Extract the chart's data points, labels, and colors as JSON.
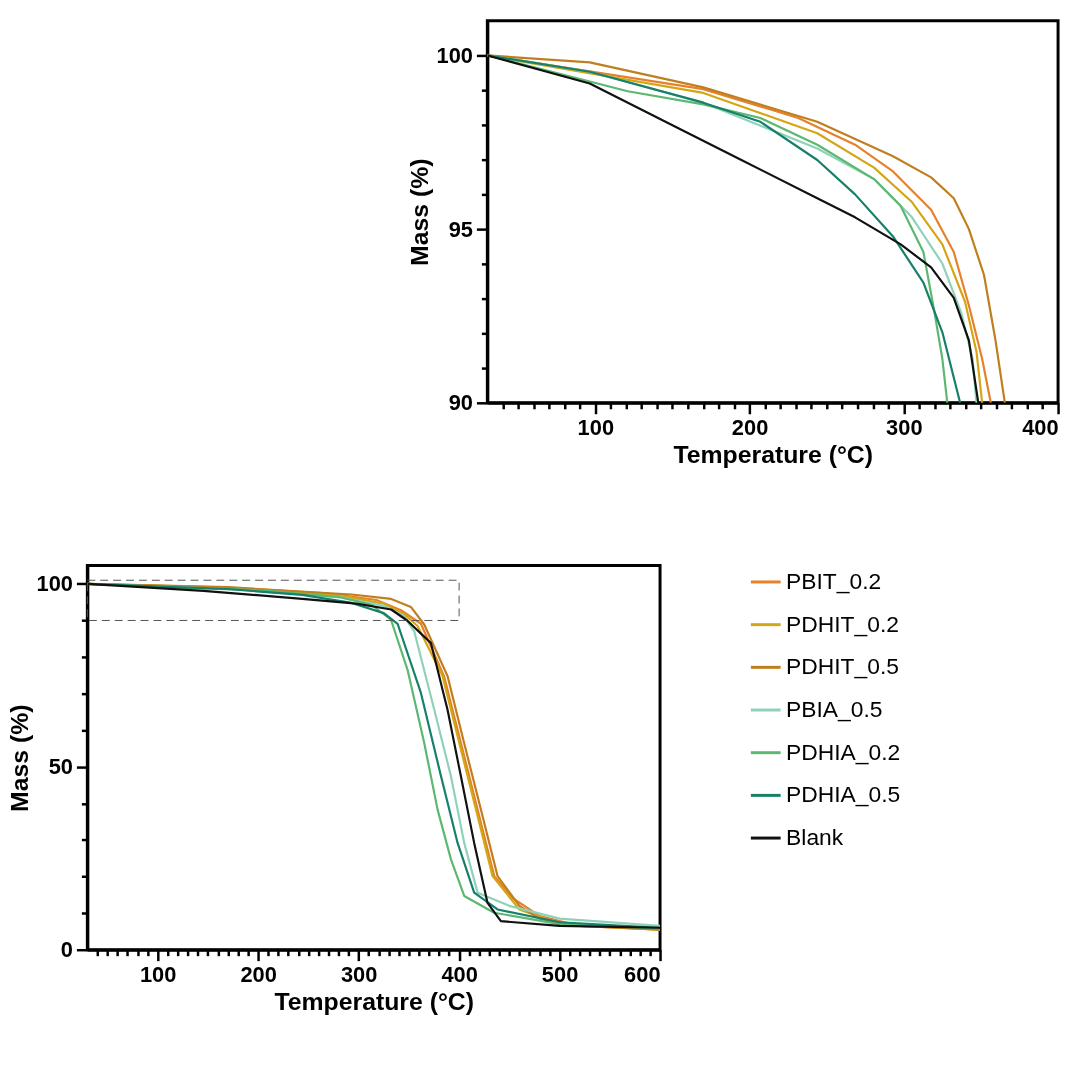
{
  "chart_data": [
    {
      "type": "line",
      "xlabel": "Temperature (°C)",
      "ylabel": "Mass (%)",
      "xlim": [
        30,
        400
      ],
      "ylim": [
        90,
        101
      ],
      "grid": false,
      "legend": false,
      "xticks": [
        {
          "value": 40,
          "label": null
        },
        {
          "value": 50,
          "label": null
        },
        {
          "value": 60,
          "label": null
        },
        {
          "value": 70,
          "label": null
        },
        {
          "value": 80,
          "label": null
        },
        {
          "value": 90,
          "label": null
        },
        100,
        {
          "value": 110,
          "label": null
        },
        {
          "value": 120,
          "label": null
        },
        {
          "value": 130,
          "label": null
        },
        {
          "value": 140,
          "label": null
        },
        {
          "value": 150,
          "label": null
        },
        {
          "value": 160,
          "label": null
        },
        {
          "value": 170,
          "label": null
        },
        {
          "value": 180,
          "label": null
        },
        {
          "value": 190,
          "label": null
        },
        200,
        {
          "value": 210,
          "label": null
        },
        {
          "value": 220,
          "label": null
        },
        {
          "value": 230,
          "label": null
        },
        {
          "value": 240,
          "label": null
        },
        {
          "value": 250,
          "label": null
        },
        {
          "value": 260,
          "label": null
        },
        {
          "value": 270,
          "label": null
        },
        {
          "value": 280,
          "label": null
        },
        {
          "value": 290,
          "label": null
        },
        300,
        {
          "value": 310,
          "label": null
        },
        {
          "value": 320,
          "label": null
        },
        {
          "value": 330,
          "label": null
        },
        {
          "value": 340,
          "label": null
        },
        {
          "value": 350,
          "label": null
        },
        {
          "value": 360,
          "label": null
        },
        {
          "value": 370,
          "label": null
        },
        {
          "value": 380,
          "label": null
        },
        {
          "value": 390,
          "label": null
        },
        400
      ],
      "yticks": [
        90,
        {
          "value": 91,
          "label": null
        },
        {
          "value": 92,
          "label": null
        },
        {
          "value": 93,
          "label": null
        },
        {
          "value": 94,
          "label": null
        },
        95,
        {
          "value": 96,
          "label": null
        },
        {
          "value": 97,
          "label": null
        },
        {
          "value": 98,
          "label": null
        },
        {
          "value": 99,
          "label": null
        },
        100
      ],
      "series": [
        {
          "color": "#e8802a",
          "x": [
            30,
            170,
            231.6,
            268.4,
            293,
            317.7,
            332.4,
            342.2,
            350.8,
            356.4
          ],
          "values": [
            100,
            99.03,
            98.2,
            97.43,
            96.66,
            95.56,
            94.34,
            92.8,
            91.26,
            90
          ]
        },
        {
          "color": "#d4a616",
          "x": [
            30,
            170,
            243.9,
            280.7,
            305.3,
            325,
            339.7,
            347.1,
            350.8
          ],
          "values": [
            100,
            98.92,
            97.76,
            96.77,
            95.78,
            94.56,
            92.91,
            91.48,
            90
          ]
        },
        {
          "color": "#c07f1f",
          "x": [
            30,
            96.4,
            170,
            243.9,
            293,
            317.7,
            332.4,
            342.2,
            352,
            359.4,
            365.5
          ],
          "values": [
            100,
            99.8,
            99.08,
            98.09,
            97.1,
            96.49,
            95.89,
            95.0,
            93.68,
            91.81,
            90
          ]
        },
        {
          "color": "#8fd1b9",
          "x": [
            30,
            96.4,
            170,
            243.9,
            280.7,
            305.3,
            325,
            337.3,
            344.6,
            347.1
          ],
          "values": [
            100,
            99.53,
            98.64,
            97.32,
            96.44,
            95.34,
            94.01,
            92.58,
            91.26,
            90
          ]
        },
        {
          "color": "#5cb870",
          "x": [
            30,
            71.8,
            121,
            170,
            207,
            243.9,
            280.7,
            297.9,
            312.7,
            320,
            325,
            328.2
          ],
          "values": [
            100,
            99.53,
            98.97,
            98.59,
            98.2,
            97.43,
            96.44,
            95.67,
            94.34,
            92.58,
            91.26,
            90
          ]
        },
        {
          "color": "#16806a",
          "x": [
            30,
            96.4,
            170,
            207,
            243.9,
            268.4,
            293,
            312.7,
            325,
            336.5
          ],
          "values": [
            100,
            99.53,
            98.64,
            98.09,
            96.99,
            96.0,
            94.79,
            93.46,
            92.03,
            90
          ]
        },
        {
          "color": "#111111",
          "x": [
            30,
            96.4,
            145.5,
            194.7,
            243.9,
            268.4,
            298,
            317.7,
            332.4,
            342.2,
            348.3
          ],
          "values": [
            100,
            99.19,
            98.09,
            96.99,
            95.89,
            95.34,
            94.56,
            93.9,
            93.02,
            91.8,
            90
          ]
        }
      ]
    },
    {
      "type": "line",
      "xlabel": "Temperature (°C)",
      "ylabel": "Mass (%)",
      "xlim": [
        30,
        600
      ],
      "ylim": [
        0,
        105
      ],
      "grid": false,
      "legend": "right",
      "xticks": [
        {
          "value": 40,
          "label": null
        },
        {
          "value": 50,
          "label": null
        },
        {
          "value": 60,
          "label": null
        },
        {
          "value": 70,
          "label": null
        },
        {
          "value": 80,
          "label": null
        },
        {
          "value": 90,
          "label": null
        },
        100,
        {
          "value": 110,
          "label": null
        },
        {
          "value": 120,
          "label": null
        },
        {
          "value": 130,
          "label": null
        },
        {
          "value": 140,
          "label": null
        },
        {
          "value": 150,
          "label": null
        },
        {
          "value": 160,
          "label": null
        },
        {
          "value": 170,
          "label": null
        },
        {
          "value": 180,
          "label": null
        },
        {
          "value": 190,
          "label": null
        },
        200,
        {
          "value": 210,
          "label": null
        },
        {
          "value": 220,
          "label": null
        },
        {
          "value": 230,
          "label": null
        },
        {
          "value": 240,
          "label": null
        },
        {
          "value": 250,
          "label": null
        },
        {
          "value": 260,
          "label": null
        },
        {
          "value": 270,
          "label": null
        },
        {
          "value": 280,
          "label": null
        },
        {
          "value": 290,
          "label": null
        },
        300,
        {
          "value": 310,
          "label": null
        },
        {
          "value": 320,
          "label": null
        },
        {
          "value": 330,
          "label": null
        },
        {
          "value": 340,
          "label": null
        },
        {
          "value": 350,
          "label": null
        },
        {
          "value": 360,
          "label": null
        },
        {
          "value": 370,
          "label": null
        },
        {
          "value": 380,
          "label": null
        },
        {
          "value": 390,
          "label": null
        },
        400,
        {
          "value": 410,
          "label": null
        },
        {
          "value": 420,
          "label": null
        },
        {
          "value": 430,
          "label": null
        },
        {
          "value": 440,
          "label": null
        },
        {
          "value": 450,
          "label": null
        },
        {
          "value": 460,
          "label": null
        },
        {
          "value": 470,
          "label": null
        },
        {
          "value": 480,
          "label": null
        },
        {
          "value": 490,
          "label": null
        },
        500,
        {
          "value": 510,
          "label": null
        },
        {
          "value": 520,
          "label": null
        },
        {
          "value": 530,
          "label": null
        },
        {
          "value": 540,
          "label": null
        },
        {
          "value": 550,
          "label": null
        },
        {
          "value": 560,
          "label": null
        },
        {
          "value": 570,
          "label": null
        },
        {
          "value": 580,
          "label": null
        },
        {
          "value": 590,
          "label": null
        },
        600
      ],
      "yticks": [
        0,
        {
          "value": 10,
          "label": null
        },
        {
          "value": 20,
          "label": null
        },
        {
          "value": 30,
          "label": null
        },
        {
          "value": 40,
          "label": null
        },
        50,
        {
          "value": 60,
          "label": null
        },
        {
          "value": 70,
          "label": null
        },
        {
          "value": 80,
          "label": null
        },
        {
          "value": 90,
          "label": null
        },
        100
      ],
      "series": [
        {
          "name": "PBIT_0.2",
          "color": "#e8802a",
          "x": [
            30,
            170,
            268.4,
            317.7,
            342.2,
            362,
            385,
            401.8,
            418.4,
            435,
            453.8,
            480.3,
            520,
            600
          ],
          "values": [
            100,
            99.0,
            97.4,
            95.6,
            92.8,
            89.1,
            74.8,
            56.5,
            38.3,
            20.1,
            14,
            9.2,
            6.5,
            5.5
          ]
        },
        {
          "name": "PDHIT_0.2",
          "color": "#d4a616",
          "x": [
            30,
            170,
            280.7,
            325,
            345,
            358.7,
            383.5,
            400.2,
            416.8,
            433.3,
            460,
            500,
            600
          ],
          "values": [
            100,
            98.9,
            96.8,
            94.6,
            91.8,
            88.5,
            74.8,
            56.5,
            38.3,
            20.1,
            11,
            7,
            5.5
          ]
        },
        {
          "name": "PDHIT_0.5",
          "color": "#c07f1f",
          "x": [
            30,
            170,
            293,
            332.4,
            352,
            365.3,
            388.5,
            405,
            421.7,
            438.3,
            460,
            480,
            520,
            600
          ],
          "values": [
            100,
            99.1,
            97.1,
            95.9,
            93.7,
            88.9,
            74.8,
            56.5,
            38.3,
            20.1,
            12,
            8.5,
            6.5,
            5.5
          ]
        },
        {
          "name": "PBIA_0.5",
          "color": "#8fd1b9",
          "x": [
            30,
            170,
            280.7,
            325,
            344.6,
            355.4,
            375.3,
            391.9,
            405.1,
            418.4,
            450,
            500,
            600
          ],
          "values": [
            100,
            98.6,
            96.4,
            94.0,
            91.3,
            87,
            65.6,
            47.4,
            29.2,
            15.6,
            12,
            8.5,
            6.5
          ]
        },
        {
          "name": "PDHIA_0.2",
          "color": "#5cb870",
          "x": [
            30,
            121,
            207,
            280.7,
            312.7,
            332.2,
            348.7,
            365.3,
            378.6,
            391.9,
            405.1,
            434.9,
            500,
            600
          ],
          "values": [
            100,
            99.0,
            98.2,
            96.4,
            94.3,
            90.2,
            76.5,
            56.5,
            38.3,
            24.7,
            14.7,
            10.1,
            7,
            5.8
          ]
        },
        {
          "name": "PDHIA_0.5",
          "color": "#16806a",
          "x": [
            30,
            170,
            243.9,
            293,
            325,
            338.8,
            362,
            382,
            398.5,
            415,
            438.3,
            500,
            600
          ],
          "values": [
            100,
            98.6,
            97.0,
            94.8,
            92.0,
            89.1,
            70.2,
            47.4,
            29.2,
            15.6,
            11,
            7.5,
            6
          ]
        },
        {
          "name": "Blank",
          "color": "#111111",
          "x": [
            30,
            145.5,
            243.9,
            298,
            332.4,
            348.3,
            372,
            388.5,
            401.8,
            415,
            428.3,
            441.6,
            500,
            600
          ],
          "values": [
            100,
            98.1,
            95.9,
            94.6,
            93.0,
            90,
            83.8,
            65.6,
            47.4,
            29.2,
            12.8,
            7.8,
            6.5,
            6
          ]
        }
      ]
    }
  ]
}
